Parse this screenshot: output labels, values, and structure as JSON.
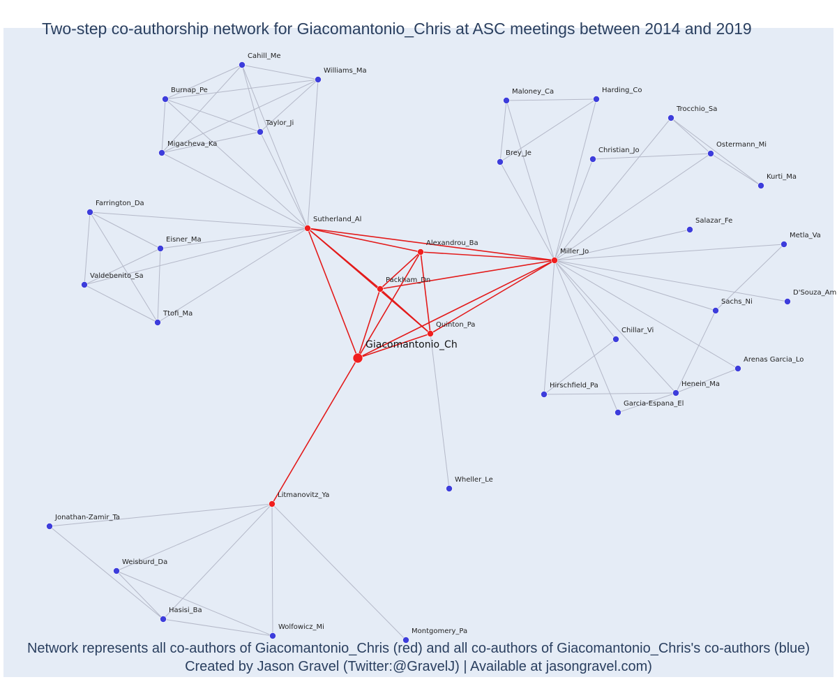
{
  "title": "Two-step co-authorship network for Giacomantonio_Chris at ASC meetings between 2014 and 2019",
  "caption": {
    "line1": "Network represents all co-authors of Giacomantonio_Chris (red) and all co-authors of Giacomantonio_Chris's co-authors (blue)",
    "line2": "Created by Jason Gravel (Twitter:@GravelJ) | Available at jasongravel.com)"
  },
  "colors": {
    "background": "#e5ecf6",
    "red_node": "#f01e1e",
    "blue_node": "#3d3ddb",
    "red_edge": "#e31a1a",
    "grey_edge": "#b4b8c8",
    "text": "#2a3f5f"
  },
  "nodes": [
    {
      "id": "Cahill_Me",
      "group": "blue"
    },
    {
      "id": "Williams_Ma",
      "group": "blue"
    },
    {
      "id": "Burnap_Pe",
      "group": "blue"
    },
    {
      "id": "Taylor_Ji",
      "group": "blue"
    },
    {
      "id": "Migacheva_Ka",
      "group": "blue"
    },
    {
      "id": "Farrington_Da",
      "group": "blue"
    },
    {
      "id": "Eisner_Ma",
      "group": "blue"
    },
    {
      "id": "Valdebenito_Sa",
      "group": "blue"
    },
    {
      "id": "Ttofi_Ma",
      "group": "blue"
    },
    {
      "id": "Sutherland_Al",
      "group": "red"
    },
    {
      "id": "Alexandrou_Ba",
      "group": "red"
    },
    {
      "id": "Packham_Dn",
      "group": "red"
    },
    {
      "id": "Quinton_Pa",
      "group": "red"
    },
    {
      "id": "Giacomantonio_Ch",
      "group": "main"
    },
    {
      "id": "Miller_Jo",
      "group": "red"
    },
    {
      "id": "Litmanovitz_Ya",
      "group": "red"
    },
    {
      "id": "Maloney_Ca",
      "group": "blue"
    },
    {
      "id": "Harding_Co",
      "group": "blue"
    },
    {
      "id": "Brey_Je",
      "group": "blue"
    },
    {
      "id": "Christian_Jo",
      "group": "blue"
    },
    {
      "id": "Trocchio_Sa",
      "group": "blue"
    },
    {
      "id": "Ostermann_Mi",
      "group": "blue"
    },
    {
      "id": "Kurti_Ma",
      "group": "blue"
    },
    {
      "id": "Salazar_Fe",
      "group": "blue"
    },
    {
      "id": "Metla_Va",
      "group": "blue"
    },
    {
      "id": "D'Souza_Am",
      "group": "blue"
    },
    {
      "id": "Sachs_Ni",
      "group": "blue"
    },
    {
      "id": "Chillar_Vi",
      "group": "blue"
    },
    {
      "id": "Arenas Garcia_Lo",
      "group": "blue"
    },
    {
      "id": "Hirschfield_Pa",
      "group": "blue"
    },
    {
      "id": "Henein_Ma",
      "group": "blue"
    },
    {
      "id": "Garcia-Espana_El",
      "group": "blue"
    },
    {
      "id": "Wheller_Le",
      "group": "blue"
    },
    {
      "id": "Jonathan-Zamir_Ta",
      "group": "blue"
    },
    {
      "id": "Weisburd_Da",
      "group": "blue"
    },
    {
      "id": "Hasisi_Ba",
      "group": "blue"
    },
    {
      "id": "Wolfowicz_Mi",
      "group": "blue"
    },
    {
      "id": "Montgomery_Pa",
      "group": "blue"
    }
  ],
  "edges": [
    [
      "Cahill_Me",
      "Williams_Ma"
    ],
    [
      "Cahill_Me",
      "Burnap_Pe"
    ],
    [
      "Cahill_Me",
      "Taylor_Ji"
    ],
    [
      "Cahill_Me",
      "Migacheva_Ka"
    ],
    [
      "Cahill_Me",
      "Sutherland_Al"
    ],
    [
      "Williams_Ma",
      "Burnap_Pe"
    ],
    [
      "Williams_Ma",
      "Taylor_Ji"
    ],
    [
      "Williams_Ma",
      "Migacheva_Ka"
    ],
    [
      "Williams_Ma",
      "Sutherland_Al"
    ],
    [
      "Burnap_Pe",
      "Taylor_Ji"
    ],
    [
      "Burnap_Pe",
      "Migacheva_Ka"
    ],
    [
      "Burnap_Pe",
      "Sutherland_Al"
    ],
    [
      "Taylor_Ji",
      "Migacheva_Ka"
    ],
    [
      "Taylor_Ji",
      "Sutherland_Al"
    ],
    [
      "Migacheva_Ka",
      "Sutherland_Al"
    ],
    [
      "Farrington_Da",
      "Eisner_Ma"
    ],
    [
      "Farrington_Da",
      "Valdebenito_Sa"
    ],
    [
      "Farrington_Da",
      "Ttofi_Ma"
    ],
    [
      "Farrington_Da",
      "Sutherland_Al"
    ],
    [
      "Eisner_Ma",
      "Valdebenito_Sa"
    ],
    [
      "Eisner_Ma",
      "Ttofi_Ma"
    ],
    [
      "Eisner_Ma",
      "Sutherland_Al"
    ],
    [
      "Valdebenito_Sa",
      "Ttofi_Ma"
    ],
    [
      "Valdebenito_Sa",
      "Sutherland_Al"
    ],
    [
      "Ttofi_Ma",
      "Sutherland_Al"
    ],
    [
      "Maloney_Ca",
      "Harding_Co"
    ],
    [
      "Maloney_Ca",
      "Brey_Je"
    ],
    [
      "Maloney_Ca",
      "Miller_Jo"
    ],
    [
      "Harding_Co",
      "Brey_Je"
    ],
    [
      "Harding_Co",
      "Miller_Jo"
    ],
    [
      "Brey_Je",
      "Miller_Jo"
    ],
    [
      "Christian_Jo",
      "Ostermann_Mi"
    ],
    [
      "Christian_Jo",
      "Miller_Jo"
    ],
    [
      "Trocchio_Sa",
      "Ostermann_Mi"
    ],
    [
      "Trocchio_Sa",
      "Kurti_Ma"
    ],
    [
      "Trocchio_Sa",
      "Miller_Jo"
    ],
    [
      "Ostermann_Mi",
      "Kurti_Ma"
    ],
    [
      "Ostermann_Mi",
      "Miller_Jo"
    ],
    [
      "Salazar_Fe",
      "Miller_Jo"
    ],
    [
      "Metla_Va",
      "Miller_Jo"
    ],
    [
      "Metla_Va",
      "Sachs_Ni"
    ],
    [
      "D'Souza_Am",
      "Miller_Jo"
    ],
    [
      "Sachs_Ni",
      "Miller_Jo"
    ],
    [
      "Sachs_Ni",
      "Henein_Ma"
    ],
    [
      "Chillar_Vi",
      "Miller_Jo"
    ],
    [
      "Chillar_Vi",
      "Hirschfield_Pa"
    ],
    [
      "Arenas Garcia_Lo",
      "Miller_Jo"
    ],
    [
      "Arenas Garcia_Lo",
      "Henein_Ma"
    ],
    [
      "Hirschfield_Pa",
      "Miller_Jo"
    ],
    [
      "Hirschfield_Pa",
      "Henein_Ma"
    ],
    [
      "Henein_Ma",
      "Miller_Jo"
    ],
    [
      "Henein_Ma",
      "Garcia-Espana_El"
    ],
    [
      "Garcia-Espana_El",
      "Miller_Jo"
    ],
    [
      "Wheller_Le",
      "Quinton_Pa"
    ],
    [
      "Jonathan-Zamir_Ta",
      "Litmanovitz_Ya"
    ],
    [
      "Jonathan-Zamir_Ta",
      "Hasisi_Ba"
    ],
    [
      "Weisburd_Da",
      "Litmanovitz_Ya"
    ],
    [
      "Weisburd_Da",
      "Hasisi_Ba"
    ],
    [
      "Weisburd_Da",
      "Wolfowicz_Mi"
    ],
    [
      "Hasisi_Ba",
      "Litmanovitz_Ya"
    ],
    [
      "Hasisi_Ba",
      "Wolfowicz_Mi"
    ],
    [
      "Wolfowicz_Mi",
      "Litmanovitz_Ya"
    ],
    [
      "Montgomery_Pa",
      "Litmanovitz_Ya"
    ]
  ],
  "red_edges": [
    [
      "Giacomantonio_Ch",
      "Sutherland_Al"
    ],
    [
      "Giacomantonio_Ch",
      "Alexandrou_Ba"
    ],
    [
      "Giacomantonio_Ch",
      "Packham_Dn"
    ],
    [
      "Giacomantonio_Ch",
      "Quinton_Pa"
    ],
    [
      "Giacomantonio_Ch",
      "Miller_Jo"
    ],
    [
      "Giacomantonio_Ch",
      "Litmanovitz_Ya"
    ],
    [
      "Sutherland_Al",
      "Alexandrou_Ba"
    ],
    [
      "Sutherland_Al",
      "Packham_Dn"
    ],
    [
      "Sutherland_Al",
      "Quinton_Pa"
    ],
    [
      "Sutherland_Al",
      "Miller_Jo"
    ],
    [
      "Alexandrou_Ba",
      "Packham_Dn"
    ],
    [
      "Alexandrou_Ba",
      "Quinton_Pa"
    ],
    [
      "Alexandrou_Ba",
      "Miller_Jo"
    ],
    [
      "Packham_Dn",
      "Quinton_Pa"
    ],
    [
      "Packham_Dn",
      "Miller_Jo"
    ],
    [
      "Quinton_Pa",
      "Miller_Jo"
    ]
  ]
}
